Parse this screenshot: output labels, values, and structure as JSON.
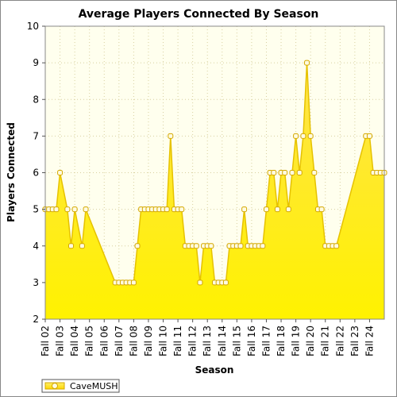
{
  "chart_data": {
    "type": "area",
    "title": "Average Players Connected By Season",
    "xlabel": "Season",
    "ylabel": "Players Connected",
    "ylim": [
      2,
      10
    ],
    "yticks": [
      2,
      3,
      4,
      5,
      6,
      7,
      8,
      9,
      10
    ],
    "grid": true,
    "legend_position": "bottom-left",
    "x_tick_labels": [
      "Fall 02",
      "Fall 03",
      "Fall 04",
      "Fall 05",
      "Fall 06",
      "Fall 07",
      "Fall 08",
      "Fall 09",
      "Fall 10",
      "Fall 11",
      "Fall 12",
      "Fall 13",
      "Fall 14",
      "Fall 15",
      "Fall 16",
      "Fall 17",
      "Fall 18",
      "Fall 19",
      "Fall 20",
      "Fall 21",
      "Fall 22",
      "Fall 23",
      "Fall 24"
    ],
    "series": [
      {
        "name": "CaveMUSH",
        "color": "#ffdd00",
        "fill_top": "#fff570",
        "fill_bottom": "#ffee00",
        "line_color": "#e6c200",
        "marker_fill": "#fffbe0",
        "marker_stroke": "#d4a800",
        "points": [
          {
            "x": 2002.0,
            "y": 5
          },
          {
            "x": 2002.25,
            "y": 5
          },
          {
            "x": 2002.5,
            "y": 5
          },
          {
            "x": 2002.75,
            "y": 5
          },
          {
            "x": 2003.0,
            "y": 6
          },
          {
            "x": 2003.5,
            "y": 5
          },
          {
            "x": 2003.75,
            "y": 4
          },
          {
            "x": 2004.0,
            "y": 5
          },
          {
            "x": 2004.5,
            "y": 4
          },
          {
            "x": 2004.75,
            "y": 5
          },
          {
            "x": 2006.75,
            "y": 3
          },
          {
            "x": 2007.0,
            "y": 3
          },
          {
            "x": 2007.25,
            "y": 3
          },
          {
            "x": 2007.5,
            "y": 3
          },
          {
            "x": 2007.75,
            "y": 3
          },
          {
            "x": 2008.0,
            "y": 3
          },
          {
            "x": 2008.25,
            "y": 4
          },
          {
            "x": 2008.5,
            "y": 5
          },
          {
            "x": 2008.75,
            "y": 5
          },
          {
            "x": 2009.0,
            "y": 5
          },
          {
            "x": 2009.25,
            "y": 5
          },
          {
            "x": 2009.5,
            "y": 5
          },
          {
            "x": 2009.75,
            "y": 5
          },
          {
            "x": 2010.0,
            "y": 5
          },
          {
            "x": 2010.25,
            "y": 5
          },
          {
            "x": 2010.5,
            "y": 7
          },
          {
            "x": 2010.75,
            "y": 5
          },
          {
            "x": 2011.0,
            "y": 5
          },
          {
            "x": 2011.25,
            "y": 5
          },
          {
            "x": 2011.5,
            "y": 4
          },
          {
            "x": 2011.75,
            "y": 4
          },
          {
            "x": 2012.0,
            "y": 4
          },
          {
            "x": 2012.25,
            "y": 4
          },
          {
            "x": 2012.5,
            "y": 3
          },
          {
            "x": 2012.75,
            "y": 4
          },
          {
            "x": 2013.0,
            "y": 4
          },
          {
            "x": 2013.25,
            "y": 4
          },
          {
            "x": 2013.5,
            "y": 3
          },
          {
            "x": 2013.75,
            "y": 3
          },
          {
            "x": 2014.0,
            "y": 3
          },
          {
            "x": 2014.25,
            "y": 3
          },
          {
            "x": 2014.5,
            "y": 4
          },
          {
            "x": 2014.75,
            "y": 4
          },
          {
            "x": 2015.0,
            "y": 4
          },
          {
            "x": 2015.25,
            "y": 4
          },
          {
            "x": 2015.5,
            "y": 5
          },
          {
            "x": 2015.75,
            "y": 4
          },
          {
            "x": 2016.0,
            "y": 4
          },
          {
            "x": 2016.25,
            "y": 4
          },
          {
            "x": 2016.5,
            "y": 4
          },
          {
            "x": 2016.75,
            "y": 4
          },
          {
            "x": 2017.0,
            "y": 5
          },
          {
            "x": 2017.25,
            "y": 6
          },
          {
            "x": 2017.5,
            "y": 6
          },
          {
            "x": 2017.75,
            "y": 5
          },
          {
            "x": 2018.0,
            "y": 6
          },
          {
            "x": 2018.25,
            "y": 6
          },
          {
            "x": 2018.5,
            "y": 5
          },
          {
            "x": 2018.75,
            "y": 6
          },
          {
            "x": 2019.0,
            "y": 7
          },
          {
            "x": 2019.25,
            "y": 6
          },
          {
            "x": 2019.5,
            "y": 7
          },
          {
            "x": 2019.75,
            "y": 9
          },
          {
            "x": 2020.0,
            "y": 7
          },
          {
            "x": 2020.25,
            "y": 6
          },
          {
            "x": 2020.5,
            "y": 5
          },
          {
            "x": 2020.75,
            "y": 5
          },
          {
            "x": 2021.0,
            "y": 4
          },
          {
            "x": 2021.25,
            "y": 4
          },
          {
            "x": 2021.5,
            "y": 4
          },
          {
            "x": 2021.75,
            "y": 4
          },
          {
            "x": 2023.75,
            "y": 7
          },
          {
            "x": 2024.0,
            "y": 7
          },
          {
            "x": 2024.25,
            "y": 6
          },
          {
            "x": 2024.5,
            "y": 6
          },
          {
            "x": 2024.75,
            "y": 6
          },
          {
            "x": 2025.0,
            "y": 6
          }
        ],
        "marker_x_years": [
          2002.0,
          2002.25,
          2002.5,
          2002.75,
          2003.0,
          2003.5,
          2003.75,
          2004.0,
          2004.5,
          2004.75,
          2006.75,
          2007.0,
          2007.25,
          2007.5,
          2007.75,
          2008.0,
          2008.25,
          2008.5,
          2008.75,
          2009.0,
          2009.25,
          2009.5,
          2009.75,
          2010.0,
          2010.25,
          2010.5,
          2010.75,
          2011.0,
          2011.25,
          2011.5,
          2011.75,
          2012.0,
          2012.25,
          2012.5,
          2012.75,
          2013.0,
          2013.25,
          2013.5,
          2013.75,
          2014.0,
          2014.25,
          2014.5,
          2014.75,
          2015.0,
          2015.25,
          2015.5,
          2015.75,
          2016.0,
          2016.25,
          2016.5,
          2016.75,
          2017.0,
          2017.25,
          2017.5,
          2017.75,
          2018.0,
          2018.25,
          2018.5,
          2018.75,
          2019.0,
          2019.25,
          2019.5,
          2019.75,
          2020.0,
          2020.25,
          2020.5,
          2020.75,
          2021.0,
          2021.25,
          2021.5,
          2021.75,
          2023.75,
          2024.0,
          2024.25,
          2024.5,
          2024.75,
          2025.0
        ]
      }
    ]
  }
}
